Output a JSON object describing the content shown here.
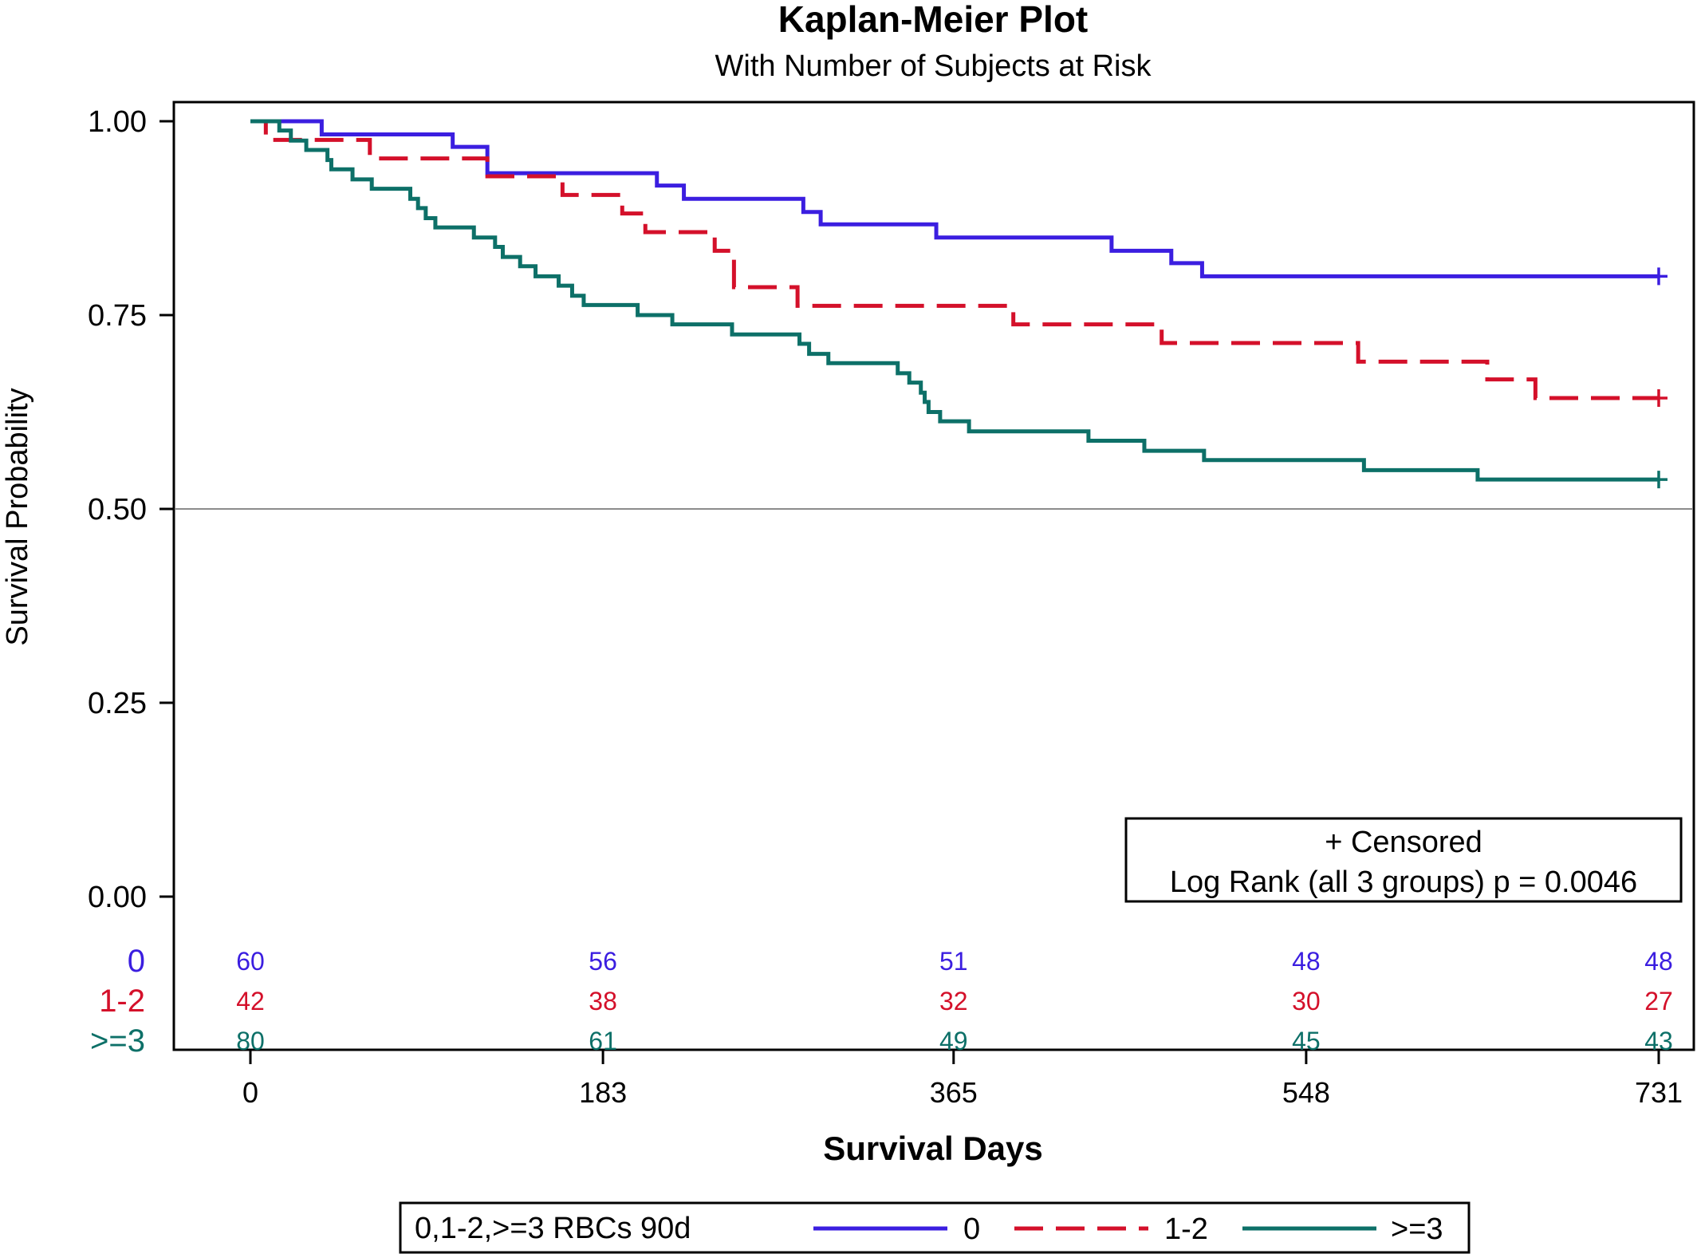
{
  "chart_data": {
    "type": "line",
    "title": "Kaplan-Meier Plot",
    "subtitle": "With Number of Subjects at Risk",
    "xlabel": "Survival Days",
    "ylabel": "Survival Probability",
    "xlim": [
      0,
      731
    ],
    "ylim": [
      0,
      1
    ],
    "x_ticks": [
      0,
      183,
      365,
      548,
      731
    ],
    "x_tick_labels": [
      "0",
      "183",
      "365",
      "548",
      "731"
    ],
    "y_ticks": [
      0,
      0.25,
      0.5,
      0.75,
      1
    ],
    "y_tick_labels": [
      "0.00",
      "0.25",
      "0.50",
      "0.75",
      "1.00"
    ],
    "reference_line_y": 0.5,
    "grid": false,
    "inset_legend": {
      "position": "bottom-right",
      "lines": [
        "+ Censored",
        "Log Rank (all 3 groups) p = 0.0046"
      ]
    },
    "legend": {
      "position": "bottom",
      "title": "0,1-2,>=3 RBCs 90d"
    },
    "series": [
      {
        "name": "0",
        "color": "#3b1ee0",
        "dash": "solid",
        "steps": [
          [
            0,
            1.0
          ],
          [
            37,
            0.983
          ],
          [
            105,
            0.967
          ],
          [
            123,
            0.933
          ],
          [
            211,
            0.917
          ],
          [
            225,
            0.9
          ],
          [
            287,
            0.883
          ],
          [
            296,
            0.867
          ],
          [
            356,
            0.85
          ],
          [
            447,
            0.833
          ],
          [
            478,
            0.817
          ],
          [
            494,
            0.8
          ]
        ],
        "censor": [
          [
            731,
            0.8
          ]
        ],
        "at_risk": [
          60,
          56,
          51,
          48,
          48
        ]
      },
      {
        "name": "1-2",
        "color": "#d4102a",
        "dash": "dashed",
        "steps": [
          [
            0,
            1.0
          ],
          [
            8,
            0.976
          ],
          [
            62,
            0.952
          ],
          [
            123,
            0.929
          ],
          [
            162,
            0.905
          ],
          [
            193,
            0.881
          ],
          [
            205,
            0.857
          ],
          [
            241,
            0.833
          ],
          [
            251,
            0.786
          ],
          [
            284,
            0.762
          ],
          [
            396,
            0.738
          ],
          [
            473,
            0.714
          ],
          [
            575,
            0.69
          ],
          [
            642,
            0.667
          ],
          [
            667,
            0.643
          ]
        ],
        "censor": [
          [
            731,
            0.643
          ]
        ],
        "at_risk": [
          42,
          38,
          32,
          30,
          27
        ]
      },
      {
        "name": ">=3",
        "color": "#0d7068",
        "dash": "solid",
        "steps": [
          [
            0,
            1.0
          ],
          [
            15,
            0.988
          ],
          [
            21,
            0.975
          ],
          [
            29,
            0.963
          ],
          [
            40,
            0.95
          ],
          [
            42,
            0.938
          ],
          [
            53,
            0.925
          ],
          [
            63,
            0.913
          ],
          [
            83,
            0.9
          ],
          [
            87,
            0.888
          ],
          [
            91,
            0.875
          ],
          [
            96,
            0.863
          ],
          [
            116,
            0.85
          ],
          [
            127,
            0.838
          ],
          [
            131,
            0.825
          ],
          [
            140,
            0.813
          ],
          [
            148,
            0.8
          ],
          [
            160,
            0.788
          ],
          [
            167,
            0.775
          ],
          [
            173,
            0.763
          ],
          [
            201,
            0.75
          ],
          [
            219,
            0.738
          ],
          [
            250,
            0.725
          ],
          [
            285,
            0.713
          ],
          [
            290,
            0.7
          ],
          [
            300,
            0.688
          ],
          [
            336,
            0.675
          ],
          [
            342,
            0.663
          ],
          [
            348,
            0.65
          ],
          [
            350,
            0.638
          ],
          [
            352,
            0.625
          ],
          [
            358,
            0.613
          ],
          [
            373,
            0.6
          ],
          [
            435,
            0.588
          ],
          [
            464,
            0.575
          ],
          [
            495,
            0.563
          ],
          [
            578,
            0.55
          ],
          [
            637,
            0.538
          ]
        ],
        "censor": [
          [
            731,
            0.538
          ]
        ],
        "at_risk": [
          80,
          61,
          49,
          45,
          43
        ]
      }
    ]
  }
}
